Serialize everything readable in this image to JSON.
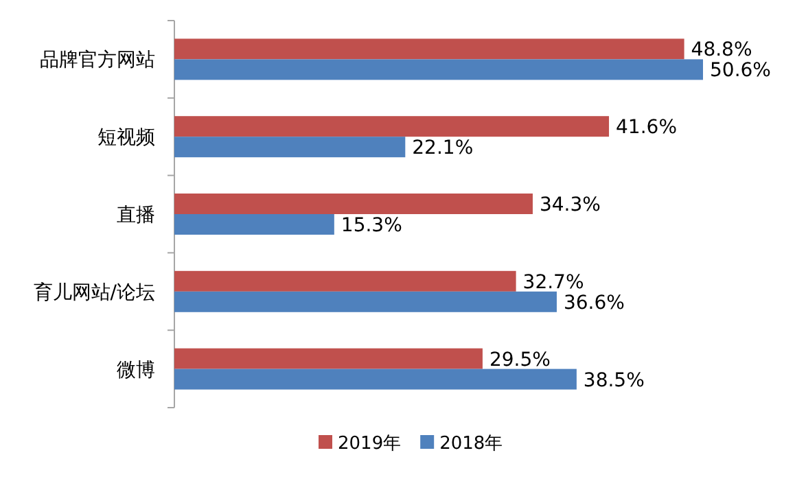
{
  "chart_data": {
    "type": "bar",
    "orientation": "horizontal",
    "categories": [
      "品牌官方网站",
      "短视频",
      "直播",
      "育儿网站/论坛",
      "微博"
    ],
    "series": [
      {
        "name": "2019年",
        "color": "#c0504d",
        "values": [
          48.8,
          41.6,
          34.3,
          32.7,
          29.5
        ],
        "value_labels": [
          "48.8%",
          "41.6%",
          "34.3%",
          "32.7%",
          "29.5%"
        ]
      },
      {
        "name": "2018年",
        "color": "#4f81bd",
        "values": [
          50.6,
          22.1,
          15.3,
          36.6,
          38.5
        ],
        "value_labels": [
          "50.6%",
          "22.1%",
          "15.3%",
          "36.6%",
          "38.5%"
        ]
      }
    ],
    "legend": "bottom"
  }
}
